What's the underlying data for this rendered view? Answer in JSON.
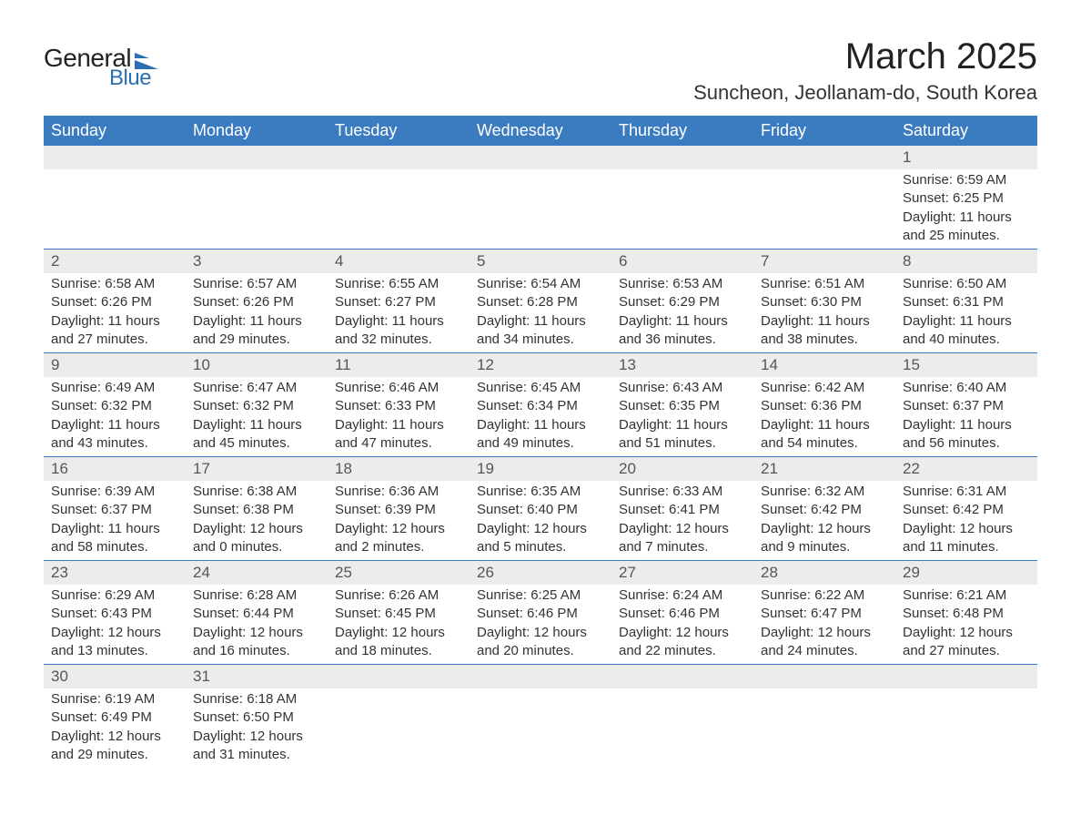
{
  "logo": {
    "general": "General",
    "blue": "Blue",
    "shape_color": "#2b6fb3"
  },
  "title": "March 2025",
  "location": "Suncheon, Jeollanam-do, South Korea",
  "header_bg": "#3b7bbf",
  "header_fg": "#ffffff",
  "daynum_bg": "#ececec",
  "border_color": "#3b7bbf",
  "weekdays": [
    "Sunday",
    "Monday",
    "Tuesday",
    "Wednesday",
    "Thursday",
    "Friday",
    "Saturday"
  ],
  "weeks": [
    [
      null,
      null,
      null,
      null,
      null,
      null,
      {
        "n": "1",
        "sr": "Sunrise: 6:59 AM",
        "ss": "Sunset: 6:25 PM",
        "d1": "Daylight: 11 hours",
        "d2": "and 25 minutes."
      }
    ],
    [
      {
        "n": "2",
        "sr": "Sunrise: 6:58 AM",
        "ss": "Sunset: 6:26 PM",
        "d1": "Daylight: 11 hours",
        "d2": "and 27 minutes."
      },
      {
        "n": "3",
        "sr": "Sunrise: 6:57 AM",
        "ss": "Sunset: 6:26 PM",
        "d1": "Daylight: 11 hours",
        "d2": "and 29 minutes."
      },
      {
        "n": "4",
        "sr": "Sunrise: 6:55 AM",
        "ss": "Sunset: 6:27 PM",
        "d1": "Daylight: 11 hours",
        "d2": "and 32 minutes."
      },
      {
        "n": "5",
        "sr": "Sunrise: 6:54 AM",
        "ss": "Sunset: 6:28 PM",
        "d1": "Daylight: 11 hours",
        "d2": "and 34 minutes."
      },
      {
        "n": "6",
        "sr": "Sunrise: 6:53 AM",
        "ss": "Sunset: 6:29 PM",
        "d1": "Daylight: 11 hours",
        "d2": "and 36 minutes."
      },
      {
        "n": "7",
        "sr": "Sunrise: 6:51 AM",
        "ss": "Sunset: 6:30 PM",
        "d1": "Daylight: 11 hours",
        "d2": "and 38 minutes."
      },
      {
        "n": "8",
        "sr": "Sunrise: 6:50 AM",
        "ss": "Sunset: 6:31 PM",
        "d1": "Daylight: 11 hours",
        "d2": "and 40 minutes."
      }
    ],
    [
      {
        "n": "9",
        "sr": "Sunrise: 6:49 AM",
        "ss": "Sunset: 6:32 PM",
        "d1": "Daylight: 11 hours",
        "d2": "and 43 minutes."
      },
      {
        "n": "10",
        "sr": "Sunrise: 6:47 AM",
        "ss": "Sunset: 6:32 PM",
        "d1": "Daylight: 11 hours",
        "d2": "and 45 minutes."
      },
      {
        "n": "11",
        "sr": "Sunrise: 6:46 AM",
        "ss": "Sunset: 6:33 PM",
        "d1": "Daylight: 11 hours",
        "d2": "and 47 minutes."
      },
      {
        "n": "12",
        "sr": "Sunrise: 6:45 AM",
        "ss": "Sunset: 6:34 PM",
        "d1": "Daylight: 11 hours",
        "d2": "and 49 minutes."
      },
      {
        "n": "13",
        "sr": "Sunrise: 6:43 AM",
        "ss": "Sunset: 6:35 PM",
        "d1": "Daylight: 11 hours",
        "d2": "and 51 minutes."
      },
      {
        "n": "14",
        "sr": "Sunrise: 6:42 AM",
        "ss": "Sunset: 6:36 PM",
        "d1": "Daylight: 11 hours",
        "d2": "and 54 minutes."
      },
      {
        "n": "15",
        "sr": "Sunrise: 6:40 AM",
        "ss": "Sunset: 6:37 PM",
        "d1": "Daylight: 11 hours",
        "d2": "and 56 minutes."
      }
    ],
    [
      {
        "n": "16",
        "sr": "Sunrise: 6:39 AM",
        "ss": "Sunset: 6:37 PM",
        "d1": "Daylight: 11 hours",
        "d2": "and 58 minutes."
      },
      {
        "n": "17",
        "sr": "Sunrise: 6:38 AM",
        "ss": "Sunset: 6:38 PM",
        "d1": "Daylight: 12 hours",
        "d2": "and 0 minutes."
      },
      {
        "n": "18",
        "sr": "Sunrise: 6:36 AM",
        "ss": "Sunset: 6:39 PM",
        "d1": "Daylight: 12 hours",
        "d2": "and 2 minutes."
      },
      {
        "n": "19",
        "sr": "Sunrise: 6:35 AM",
        "ss": "Sunset: 6:40 PM",
        "d1": "Daylight: 12 hours",
        "d2": "and 5 minutes."
      },
      {
        "n": "20",
        "sr": "Sunrise: 6:33 AM",
        "ss": "Sunset: 6:41 PM",
        "d1": "Daylight: 12 hours",
        "d2": "and 7 minutes."
      },
      {
        "n": "21",
        "sr": "Sunrise: 6:32 AM",
        "ss": "Sunset: 6:42 PM",
        "d1": "Daylight: 12 hours",
        "d2": "and 9 minutes."
      },
      {
        "n": "22",
        "sr": "Sunrise: 6:31 AM",
        "ss": "Sunset: 6:42 PM",
        "d1": "Daylight: 12 hours",
        "d2": "and 11 minutes."
      }
    ],
    [
      {
        "n": "23",
        "sr": "Sunrise: 6:29 AM",
        "ss": "Sunset: 6:43 PM",
        "d1": "Daylight: 12 hours",
        "d2": "and 13 minutes."
      },
      {
        "n": "24",
        "sr": "Sunrise: 6:28 AM",
        "ss": "Sunset: 6:44 PM",
        "d1": "Daylight: 12 hours",
        "d2": "and 16 minutes."
      },
      {
        "n": "25",
        "sr": "Sunrise: 6:26 AM",
        "ss": "Sunset: 6:45 PM",
        "d1": "Daylight: 12 hours",
        "d2": "and 18 minutes."
      },
      {
        "n": "26",
        "sr": "Sunrise: 6:25 AM",
        "ss": "Sunset: 6:46 PM",
        "d1": "Daylight: 12 hours",
        "d2": "and 20 minutes."
      },
      {
        "n": "27",
        "sr": "Sunrise: 6:24 AM",
        "ss": "Sunset: 6:46 PM",
        "d1": "Daylight: 12 hours",
        "d2": "and 22 minutes."
      },
      {
        "n": "28",
        "sr": "Sunrise: 6:22 AM",
        "ss": "Sunset: 6:47 PM",
        "d1": "Daylight: 12 hours",
        "d2": "and 24 minutes."
      },
      {
        "n": "29",
        "sr": "Sunrise: 6:21 AM",
        "ss": "Sunset: 6:48 PM",
        "d1": "Daylight: 12 hours",
        "d2": "and 27 minutes."
      }
    ],
    [
      {
        "n": "30",
        "sr": "Sunrise: 6:19 AM",
        "ss": "Sunset: 6:49 PM",
        "d1": "Daylight: 12 hours",
        "d2": "and 29 minutes."
      },
      {
        "n": "31",
        "sr": "Sunrise: 6:18 AM",
        "ss": "Sunset: 6:50 PM",
        "d1": "Daylight: 12 hours",
        "d2": "and 31 minutes."
      },
      null,
      null,
      null,
      null,
      null
    ]
  ]
}
